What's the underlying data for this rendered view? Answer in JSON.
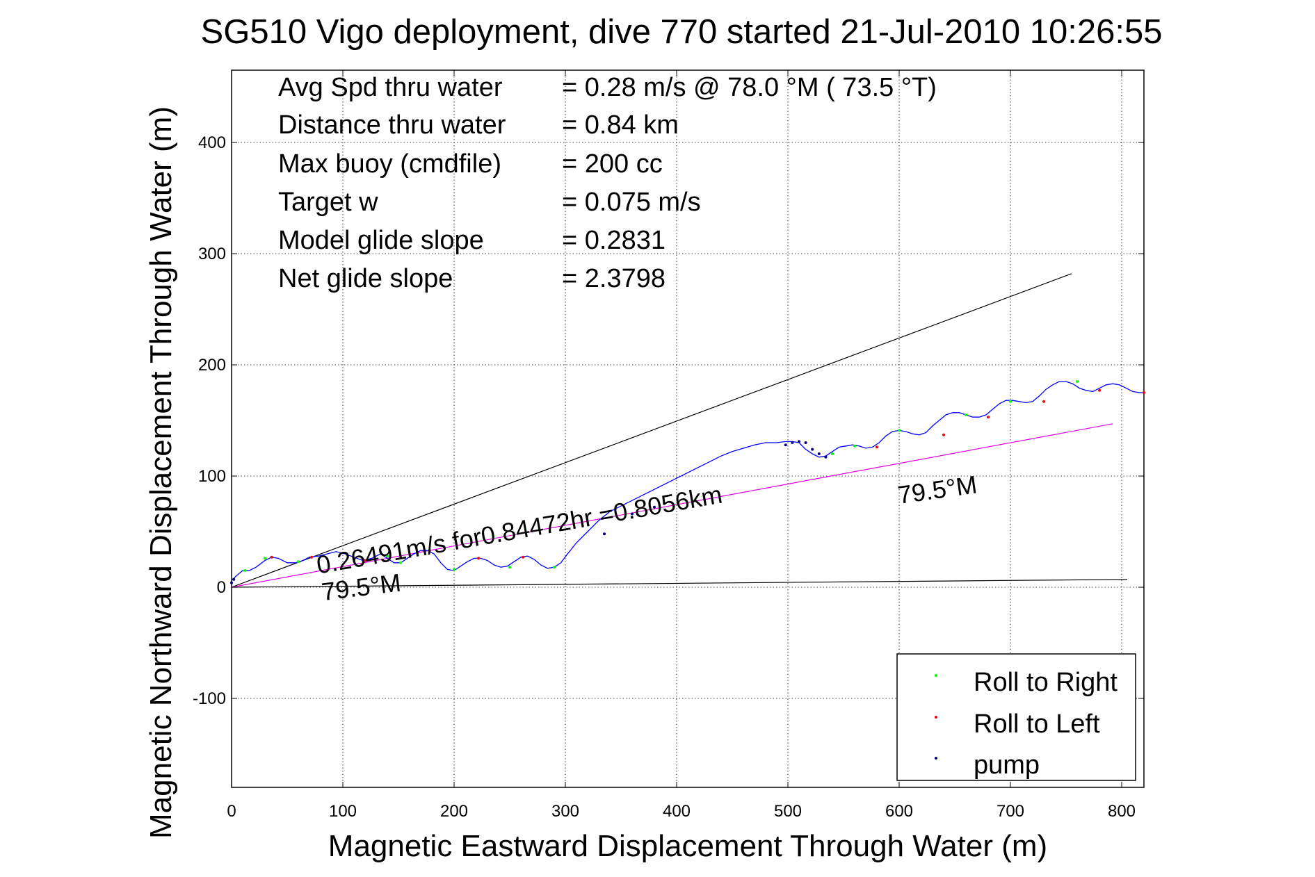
{
  "chart_data": {
    "type": "line",
    "title": "SG510 Vigo deployment, dive 770 started 21-Jul-2010 10:26:55",
    "xlabel": "Magnetic Eastward Displacement Through Water (m)",
    "ylabel": "Magnetic Northward Displacement Through Water (m)",
    "xlim": [
      0,
      820
    ],
    "ylim": [
      -180,
      465
    ],
    "xticks": [
      0,
      100,
      200,
      300,
      400,
      500,
      600,
      700,
      800
    ],
    "yticks": [
      -100,
      0,
      100,
      200,
      300,
      400
    ],
    "grid": true,
    "legend_position": "bottom-right",
    "stats": [
      {
        "label": "Avg Spd thru water",
        "value": "=  0.28 m/s @  78.0 °M ( 73.5 °T)"
      },
      {
        "label": "Distance thru water",
        "value": "=  0.84 km"
      },
      {
        "label": "Max buoy (cmdfile)",
        "value": "= 200 cc"
      },
      {
        "label": "Target w",
        "value": "= 0.075 m/s"
      },
      {
        "label": "Model glide slope",
        "value": "= 0.2831"
      },
      {
        "label": "Net glide slope",
        "value": "= 2.3798"
      }
    ],
    "annotations": [
      {
        "text": "0.26491m/s for0.84472hr =0.8056km",
        "x": 78,
        "y": 12,
        "angle_deg": -10
      },
      {
        "text": "79.5°M",
        "x": 82,
        "y": -12,
        "angle_deg": -7
      },
      {
        "text": "79.5°M",
        "x": 600,
        "y": 75,
        "angle_deg": -8
      }
    ],
    "reference_lines": [
      {
        "name": "upper bound",
        "color": "#000000",
        "x": [
          0,
          755
        ],
        "y": [
          0,
          282
        ]
      },
      {
        "name": "lower bound",
        "color": "#000000",
        "x": [
          0,
          805
        ],
        "y": [
          0,
          7
        ]
      },
      {
        "name": "heading line",
        "color": "#e000e0",
        "x": [
          0,
          792
        ],
        "y": [
          0,
          147
        ]
      }
    ],
    "series": [
      {
        "name": "track",
        "color": "#0000ff",
        "x": [
          0,
          4,
          10,
          16,
          22,
          30,
          36,
          42,
          50,
          58,
          64,
          70,
          78,
          86,
          94,
          102,
          110,
          118,
          126,
          134,
          140,
          146,
          152,
          158,
          164,
          170,
          176,
          182,
          188,
          194,
          200,
          206,
          212,
          218,
          224,
          230,
          236,
          242,
          248,
          254,
          260,
          266,
          272,
          278,
          284,
          290,
          296,
          302,
          310,
          320,
          330,
          340,
          350,
          360,
          370,
          380,
          390,
          400,
          410,
          420,
          430,
          440,
          450,
          460,
          470,
          480,
          490,
          498,
          504,
          510,
          516,
          522,
          528,
          534,
          540,
          546,
          552,
          558,
          564,
          570,
          576,
          582,
          588,
          594,
          600,
          606,
          612,
          618,
          624,
          630,
          636,
          642,
          648,
          654,
          660,
          666,
          672,
          678,
          684,
          690,
          696,
          702,
          708,
          714,
          720,
          726,
          732,
          738,
          744,
          750,
          756,
          762,
          768,
          774,
          780,
          786,
          792,
          798,
          804,
          810,
          816,
          820
        ],
        "y": [
          6,
          10,
          15,
          15,
          18,
          24,
          27,
          26,
          22,
          22,
          24,
          27,
          28,
          30,
          32,
          30,
          27,
          24,
          26,
          30,
          26,
          22,
          22,
          26,
          30,
          33,
          33,
          30,
          22,
          16,
          15,
          19,
          23,
          26,
          26,
          24,
          20,
          18,
          19,
          23,
          27,
          28,
          25,
          20,
          17,
          18,
          22,
          30,
          40,
          50,
          60,
          68,
          73,
          78,
          83,
          88,
          93,
          98,
          103,
          108,
          113,
          118,
          122,
          125,
          128,
          130,
          130,
          131,
          131,
          130,
          124,
          120,
          117,
          118,
          122,
          126,
          127,
          128,
          127,
          125,
          126,
          130,
          136,
          140,
          141,
          140,
          138,
          137,
          139,
          145,
          150,
          155,
          157,
          157,
          155,
          153,
          153,
          155,
          160,
          165,
          168,
          168,
          167,
          166,
          167,
          172,
          178,
          182,
          185,
          185,
          183,
          179,
          177,
          176,
          179,
          182,
          183,
          182,
          179,
          176,
          175,
          175
        ]
      },
      {
        "name": "Roll to Right",
        "color": "#00ff00",
        "x": [
          12,
          30,
          60,
          140,
          152,
          200,
          250,
          290,
          540,
          560,
          600,
          660,
          700,
          760
        ],
        "y": [
          15,
          26,
          23,
          28,
          22,
          16,
          18,
          18,
          120,
          127,
          141,
          155,
          167,
          185
        ]
      },
      {
        "name": "Roll to Left",
        "color": "#ff0000",
        "x": [
          36,
          72,
          120,
          178,
          222,
          262,
          580,
          640,
          680,
          730,
          780,
          820
        ],
        "y": [
          27,
          27,
          24,
          33,
          26,
          27,
          126,
          137,
          153,
          167,
          177,
          175
        ]
      },
      {
        "name": "pump",
        "color": "#000080",
        "x": [
          0,
          2,
          335,
          360,
          380,
          498,
          504,
          510,
          516,
          522,
          528,
          534
        ],
        "y": [
          4,
          7,
          48,
          66,
          72,
          128,
          130,
          131,
          130,
          124,
          120,
          117
        ]
      }
    ]
  }
}
